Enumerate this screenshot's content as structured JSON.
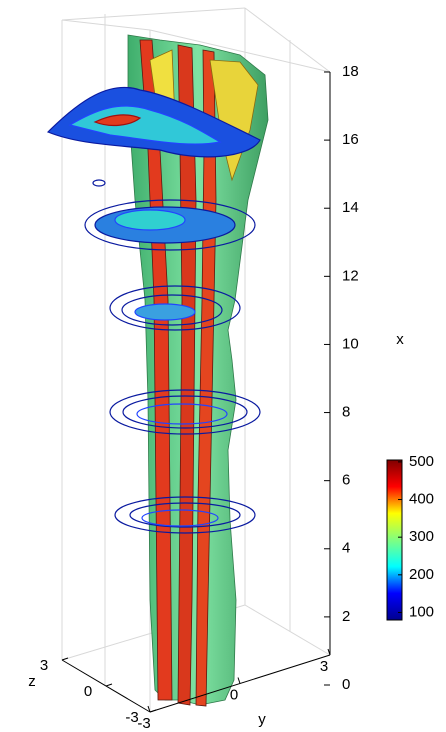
{
  "chart_data": {
    "type": "surface3d",
    "xlabel": "x",
    "ylabel": "y",
    "zlabel": "z",
    "xlim": [
      0,
      18
    ],
    "xticks": [
      0,
      2,
      4,
      6,
      8,
      10,
      12,
      14,
      16,
      18
    ],
    "ylim": [
      -3,
      3
    ],
    "yticks": [
      -3,
      0,
      3
    ],
    "zlim": [
      -3,
      3
    ],
    "zticks": [
      -3,
      0,
      3
    ],
    "clim": [
      80,
      505
    ],
    "cticks": [
      100,
      200,
      300,
      400,
      500
    ],
    "colormap": [
      "#00008f",
      "#0000ff",
      "#00ffff",
      "#80ff80",
      "#ffff00",
      "#ff0000",
      "#800000"
    ]
  }
}
